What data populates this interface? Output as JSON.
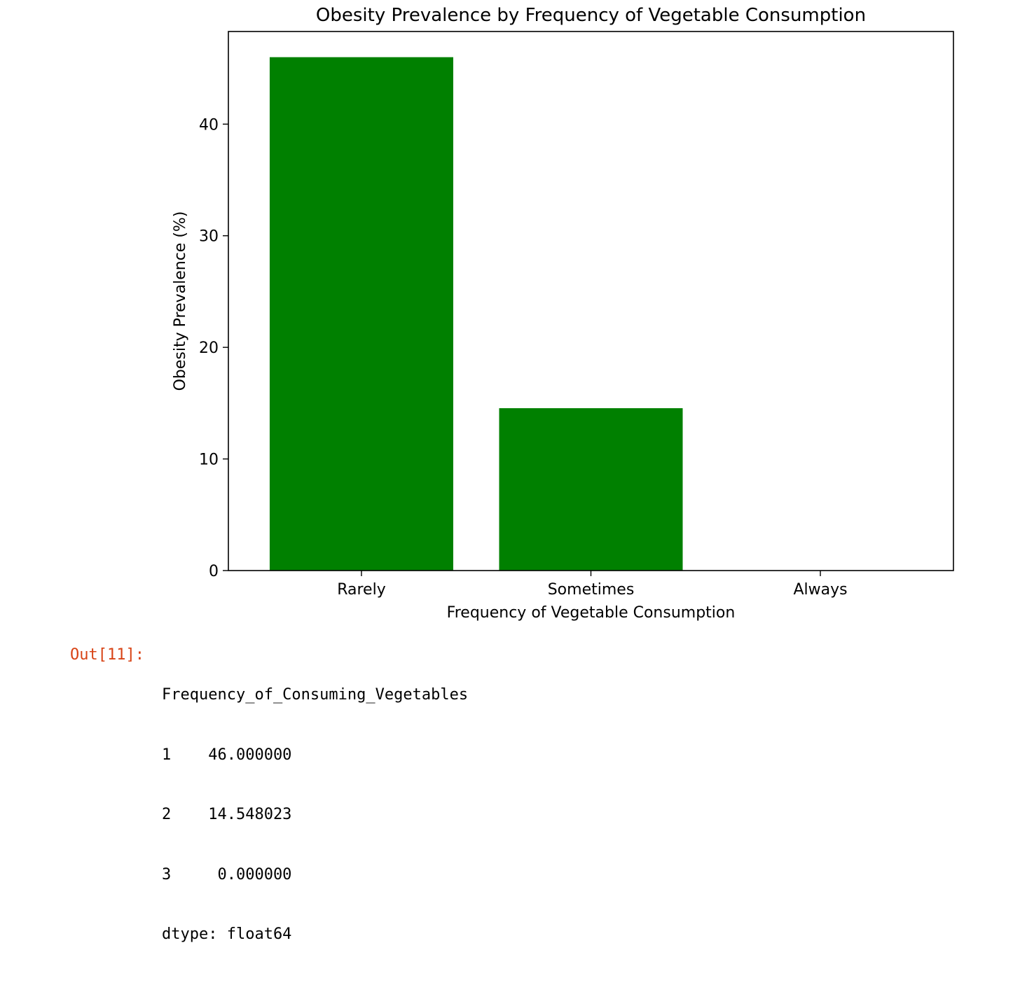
{
  "chart_data": {
    "type": "bar",
    "title": "Obesity Prevalence by Frequency of Vegetable Consumption",
    "xlabel": "Frequency of Vegetable Consumption",
    "ylabel": "Obesity Prevalence (%)",
    "categories": [
      "Rarely",
      "Sometimes",
      "Always"
    ],
    "values": [
      46.0,
      14.548023,
      0.0
    ],
    "ylim": [
      0,
      48.3
    ],
    "yticks": [
      0,
      10,
      20,
      30,
      40
    ],
    "bar_color": "#008000",
    "grid": false,
    "legend": "none"
  },
  "output": {
    "prompt": "Out[11]:",
    "lines": [
      "Frequency_of_Consuming_Vegetables",
      "1    46.000000",
      "2    14.548023",
      "3     0.000000",
      "dtype: float64"
    ]
  }
}
